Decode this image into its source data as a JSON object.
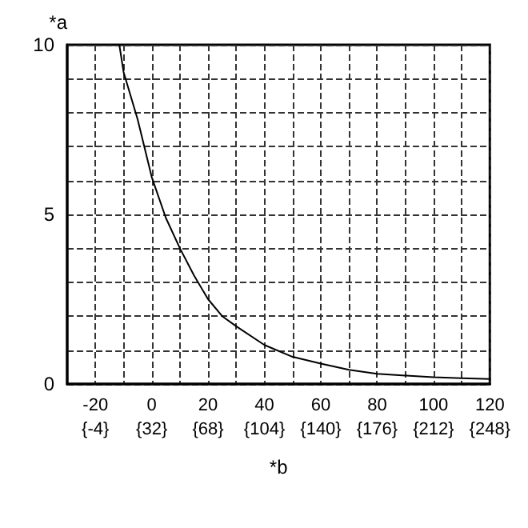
{
  "chart_data": {
    "type": "line",
    "xlabel": "*b",
    "ylabel": "*a",
    "x": [
      -11.5,
      -10,
      -5,
      0,
      5,
      10,
      15,
      20,
      25,
      30,
      40,
      50,
      60,
      70,
      80,
      90,
      100,
      110,
      120
    ],
    "values": [
      10,
      9.2,
      7.8,
      6.1,
      4.9,
      4.0,
      3.2,
      2.5,
      2.0,
      1.7,
      1.15,
      0.8,
      0.6,
      0.42,
      0.3,
      0.25,
      0.2,
      0.17,
      0.15
    ],
    "color": "#000000",
    "marker": "none",
    "line_style": "solid",
    "grid": true,
    "xlim": [
      -30,
      120
    ],
    "ylim": [
      0,
      10
    ],
    "xticks": [
      -20,
      {
        "value": -10,
        "label": null
      },
      0,
      {
        "value": 10,
        "label": null
      },
      20,
      {
        "value": 30,
        "label": null
      },
      40,
      {
        "value": 50,
        "label": null
      },
      60,
      {
        "value": 70,
        "label": null
      },
      80,
      {
        "value": 90,
        "label": null
      },
      100,
      {
        "value": 110,
        "label": null
      },
      120
    ],
    "x2lim": [
      -22,
      248
    ],
    "x2ticks": [
      {
        "value": -4,
        "label": "{-4}"
      },
      {
        "value": 32,
        "label": "{32}"
      },
      {
        "value": 68,
        "label": "{68}"
      },
      {
        "value": 104,
        "label": "{104}"
      },
      {
        "value": 140,
        "label": "{140}"
      },
      {
        "value": 176,
        "label": "{176}"
      },
      {
        "value": 212,
        "label": "{212}"
      },
      {
        "value": 248,
        "label": "{248}"
      }
    ],
    "yticks": [
      0,
      {
        "value": 1,
        "label": null
      },
      {
        "value": 2,
        "label": null
      },
      {
        "value": 3,
        "label": null
      },
      {
        "value": 4,
        "label": null
      },
      5,
      {
        "value": 6,
        "label": null
      },
      {
        "value": 7,
        "label": null
      },
      {
        "value": 8,
        "label": null
      },
      {
        "value": 9,
        "label": null
      },
      10
    ]
  }
}
